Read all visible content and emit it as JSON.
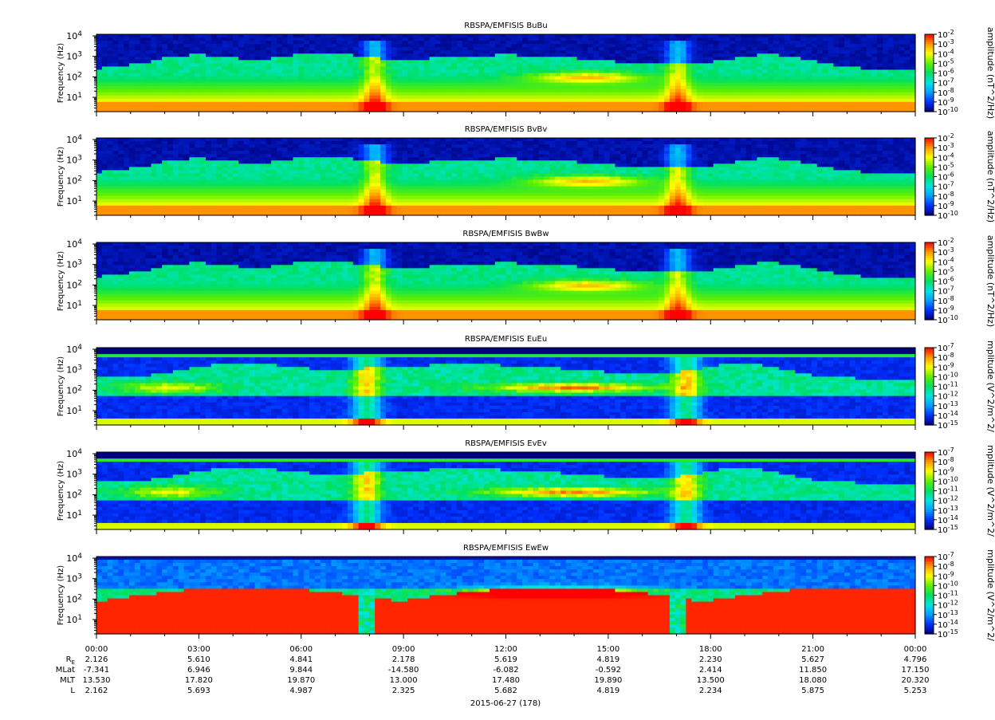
{
  "colors": {
    "background": "#ffffff",
    "colormap": [
      "#00007a",
      "#0030ff",
      "#00a0ff",
      "#00e5e5",
      "#00e060",
      "#60f000",
      "#ffff00",
      "#ff9900",
      "#ff0000"
    ]
  },
  "chart_data": [
    {
      "type": "heatmap",
      "title": "RBSPA/EMFISIS  BuBu",
      "ylabel": "Frequency (Hz)",
      "yscale": "log",
      "ylim": [
        2,
        12000
      ],
      "ytick_labels": [
        "10^1",
        "10^2",
        "10^3",
        "10^4"
      ],
      "zlabel": "amplitude (nT^2/Hz)",
      "zscale": "log",
      "zlim": [
        1e-10,
        0.01
      ],
      "ztick_labels": [
        "10^-2",
        "10^-3",
        "10^-4",
        "10^-5",
        "10^-6",
        "10^-7",
        "10^-8",
        "10^-9",
        "10^-10"
      ],
      "pattern": "mag"
    },
    {
      "type": "heatmap",
      "title": "RBSPA/EMFISIS  BvBv",
      "ylabel": "Frequency (Hz)",
      "yscale": "log",
      "ylim": [
        2,
        12000
      ],
      "ytick_labels": [
        "10^1",
        "10^2",
        "10^3",
        "10^4"
      ],
      "zlabel": "amplitude (nT^2/Hz)",
      "zscale": "log",
      "zlim": [
        1e-10,
        0.01
      ],
      "ztick_labels": [
        "10^-2",
        "10^-3",
        "10^-4",
        "10^-5",
        "10^-6",
        "10^-7",
        "10^-8",
        "10^-9",
        "10^-10"
      ],
      "pattern": "mag"
    },
    {
      "type": "heatmap",
      "title": "RBSPA/EMFISIS  BwBw",
      "ylabel": "Frequency (Hz)",
      "yscale": "log",
      "ylim": [
        2,
        12000
      ],
      "ytick_labels": [
        "10^1",
        "10^2",
        "10^3",
        "10^4"
      ],
      "zlabel": "amplitude (nT^2/Hz)",
      "zscale": "log",
      "zlim": [
        1e-10,
        0.01
      ],
      "ztick_labels": [
        "10^-2",
        "10^-3",
        "10^-4",
        "10^-5",
        "10^-6",
        "10^-7",
        "10^-8",
        "10^-9",
        "10^-10"
      ],
      "pattern": "mag"
    },
    {
      "type": "heatmap",
      "title": "RBSPA/EMFISIS  EuEu",
      "ylabel": "Frequency (Hz)",
      "yscale": "log",
      "ylim": [
        2,
        12000
      ],
      "ytick_labels": [
        "10^1",
        "10^2",
        "10^3",
        "10^4"
      ],
      "zlabel": "mplitude (V^2/m^2/",
      "zscale": "log",
      "zlim": [
        1e-15,
        1e-07
      ],
      "ztick_labels": [
        "10^-7",
        "10^-8",
        "10^-9",
        "10^-10",
        "10^-11",
        "10^-12",
        "10^-13",
        "10^-14",
        "10^-15"
      ],
      "pattern": "elec"
    },
    {
      "type": "heatmap",
      "title": "RBSPA/EMFISIS  EvEv",
      "ylabel": "Frequency (Hz)",
      "yscale": "log",
      "ylim": [
        2,
        12000
      ],
      "ytick_labels": [
        "10^1",
        "10^2",
        "10^3",
        "10^4"
      ],
      "zlabel": "mplitude (V^2/m^2/",
      "zscale": "log",
      "zlim": [
        1e-15,
        1e-07
      ],
      "ztick_labels": [
        "10^-7",
        "10^-8",
        "10^-9",
        "10^-10",
        "10^-11",
        "10^-12",
        "10^-13",
        "10^-14",
        "10^-15"
      ],
      "pattern": "elec"
    },
    {
      "type": "heatmap",
      "title": "RBSPA/EMFISIS  EwEw",
      "ylabel": "Frequency (Hz)",
      "yscale": "log",
      "ylim": [
        2,
        12000
      ],
      "ytick_labels": [
        "10^1",
        "10^2",
        "10^3",
        "10^4"
      ],
      "zlabel": "mplitude (V^2/m^2/",
      "zscale": "log",
      "zlim": [
        1e-15,
        1e-07
      ],
      "ztick_labels": [
        "10^-7",
        "10^-8",
        "10^-9",
        "10^-10",
        "10^-11",
        "10^-12",
        "10^-13",
        "10^-14",
        "10^-15"
      ],
      "pattern": "ew"
    }
  ],
  "x_axis": {
    "hours": [
      0,
      3,
      6,
      9,
      12,
      15,
      18,
      21,
      24
    ],
    "tick_labels": [
      "00:00",
      "03:00",
      "06:00",
      "09:00",
      "12:00",
      "15:00",
      "18:00",
      "21:00",
      "00:00"
    ],
    "row_labels": [
      "R_E",
      "MLat",
      "MLT",
      "L"
    ],
    "rows": [
      [
        "2.126",
        "5.610",
        "4.841",
        "2.178",
        "5.619",
        "4.819",
        "2.230",
        "5.627",
        "4.796"
      ],
      [
        "-7.341",
        "6.946",
        "9.844",
        "-14.580",
        "-6.082",
        "-0.592",
        "2.414",
        "11.850",
        "17.150"
      ],
      [
        "13.530",
        "17.820",
        "19.870",
        "13.000",
        "17.480",
        "19.890",
        "13.500",
        "18.080",
        "20.320"
      ],
      [
        "2.162",
        "5.693",
        "4.987",
        "2.325",
        "5.682",
        "4.819",
        "2.234",
        "5.875",
        "5.253"
      ]
    ],
    "date_label": "2015-06-27 (178)"
  }
}
